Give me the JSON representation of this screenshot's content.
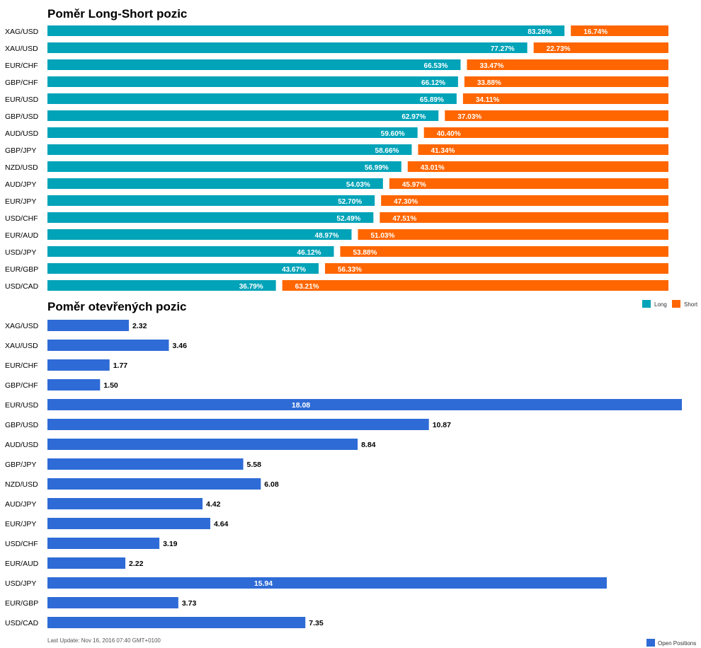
{
  "chart_data": [
    {
      "type": "bar",
      "title": "Poměr Long-Short pozic",
      "orientation": "horizontal",
      "stacked": true,
      "categories": [
        "XAG/USD",
        "XAU/USD",
        "EUR/CHF",
        "GBP/CHF",
        "EUR/USD",
        "GBP/USD",
        "AUD/USD",
        "GBP/JPY",
        "NZD/USD",
        "AUD/JPY",
        "EUR/JPY",
        "USD/CHF",
        "EUR/AUD",
        "USD/JPY",
        "EUR/GBP",
        "USD/CAD"
      ],
      "series": [
        {
          "name": "Long",
          "color": "#00a3b8",
          "values": [
            83.26,
            77.27,
            66.53,
            66.12,
            65.89,
            62.97,
            59.6,
            58.66,
            56.99,
            54.03,
            52.7,
            52.49,
            48.97,
            46.12,
            43.67,
            36.79
          ],
          "labels": [
            "83.26%",
            "77.27%",
            "66.53%",
            "66.12%",
            "65.89%",
            "62.97%",
            "59.60%",
            "58.66%",
            "56.99%",
            "54.03%",
            "52.70%",
            "52.49%",
            "48.97%",
            "46.12%",
            "43.67%",
            "36.79%"
          ]
        },
        {
          "name": "Short",
          "color": "#ff6600",
          "values": [
            16.74,
            22.73,
            33.47,
            33.88,
            34.11,
            37.03,
            40.4,
            41.34,
            43.01,
            45.97,
            47.3,
            47.51,
            51.03,
            53.88,
            56.33,
            63.21
          ],
          "labels": [
            "16.74%",
            "22.73%",
            "33.47%",
            "33.88%",
            "34.11%",
            "37.03%",
            "40.40%",
            "41.34%",
            "43.01%",
            "45.97%",
            "47.30%",
            "47.51%",
            "51.03%",
            "53.88%",
            "56.33%",
            "63.21%"
          ]
        }
      ],
      "xlim": [
        0,
        100
      ],
      "legend": {
        "position": "bottom-right",
        "items": [
          {
            "label": "Long",
            "color": "#00a3b8"
          },
          {
            "label": "Short",
            "color": "#ff6600"
          }
        ]
      }
    },
    {
      "type": "bar",
      "title": "Poměr otevřených pozic",
      "orientation": "horizontal",
      "categories": [
        "XAG/USD",
        "XAU/USD",
        "EUR/CHF",
        "GBP/CHF",
        "EUR/USD",
        "GBP/USD",
        "AUD/USD",
        "GBP/JPY",
        "NZD/USD",
        "AUD/JPY",
        "EUR/JPY",
        "USD/CHF",
        "EUR/AUD",
        "USD/JPY",
        "EUR/GBP",
        "USD/CAD"
      ],
      "series": [
        {
          "name": "Open Positions",
          "color": "#2e6bd6",
          "values": [
            2.32,
            3.46,
            1.77,
            1.5,
            18.08,
            10.87,
            8.84,
            5.58,
            6.08,
            4.42,
            4.64,
            3.19,
            2.22,
            15.94,
            3.73,
            7.35
          ],
          "labels": [
            "2.32",
            "3.46",
            "1.77",
            "1.50",
            "18.08",
            "10.87",
            "8.84",
            "5.58",
            "6.08",
            "4.42",
            "4.64",
            "3.19",
            "2.22",
            "15.94",
            "3.73",
            "7.35"
          ]
        }
      ],
      "xlim": [
        0,
        18.08
      ],
      "legend": {
        "position": "bottom-right",
        "items": [
          {
            "label": "Open Positions",
            "color": "#2e6bd6"
          }
        ]
      }
    }
  ],
  "footer": {
    "last_update": "Last Update: Nov 16, 2016 07:40 GMT+0100"
  }
}
